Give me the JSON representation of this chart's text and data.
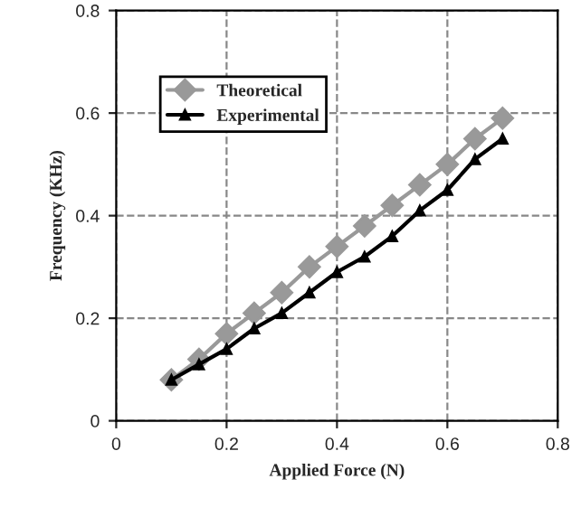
{
  "chart_data": {
    "type": "line",
    "xlabel": "Applied Force (N)",
    "ylabel": "Frequency (KHz)",
    "x": [
      0.1,
      0.15,
      0.2,
      0.25,
      0.3,
      0.35,
      0.4,
      0.45,
      0.5,
      0.55,
      0.6,
      0.65,
      0.7
    ],
    "series": [
      {
        "name": "Theoretical",
        "color": "#999999",
        "marker": "diamond",
        "values": [
          0.08,
          0.12,
          0.17,
          0.21,
          0.25,
          0.3,
          0.34,
          0.38,
          0.42,
          0.46,
          0.5,
          0.55,
          0.59
        ]
      },
      {
        "name": "Experimental",
        "color": "#000000",
        "marker": "triangle",
        "values": [
          0.08,
          0.11,
          0.14,
          0.18,
          0.21,
          0.25,
          0.29,
          0.32,
          0.36,
          0.41,
          0.45,
          0.51,
          0.55
        ]
      }
    ],
    "xlim": [
      0,
      0.8
    ],
    "xticks": [
      0,
      0.2,
      0.4,
      0.6,
      0.8
    ],
    "ylim": [
      0,
      0.8
    ],
    "yticks": [
      0,
      0.2,
      0.4,
      0.6,
      0.8
    ],
    "grid": true,
    "legend": "top left"
  }
}
